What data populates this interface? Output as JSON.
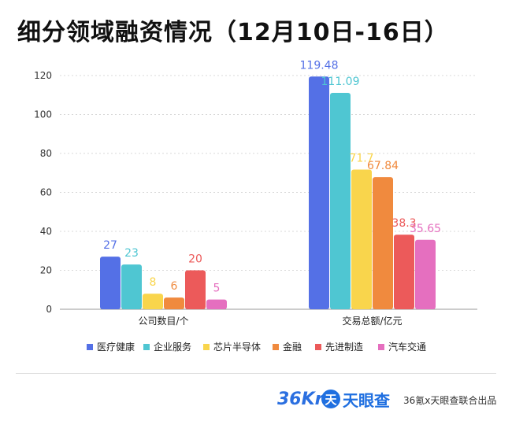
{
  "title": "细分领域融资情况（12月10日-16日）",
  "chart_data": {
    "type": "bar",
    "categories": [
      "公司数目/个",
      "交易总额/亿元"
    ],
    "series": [
      {
        "name": "医疗健康",
        "color": "#5470e6",
        "values": [
          27,
          119.48
        ],
        "labels": [
          "27",
          "119.48"
        ]
      },
      {
        "name": "企业服务",
        "color": "#4fc6d2",
        "values": [
          23,
          111.09
        ],
        "labels": [
          "23",
          "111.09"
        ]
      },
      {
        "name": "芯片半导体",
        "color": "#f9d54c",
        "values": [
          8,
          71.7
        ],
        "labels": [
          "8",
          "71.7"
        ]
      },
      {
        "name": "金融",
        "color": "#f08a3e",
        "values": [
          6,
          67.84
        ],
        "labels": [
          "6",
          "67.84"
        ]
      },
      {
        "name": "先进制造",
        "color": "#ec5a5a",
        "values": [
          20,
          38.3
        ],
        "labels": [
          "20",
          "38.3"
        ]
      },
      {
        "name": "汽车交通",
        "color": "#e56fbf",
        "values": [
          5,
          35.65
        ],
        "labels": [
          "5",
          "35.65"
        ]
      }
    ],
    "yticks": [
      "0",
      "20",
      "40",
      "60",
      "80",
      "100",
      "120"
    ],
    "ylim": [
      0,
      120
    ],
    "grid": "dashed-horizontal",
    "legend_position": "bottom"
  },
  "footer": {
    "logo_36kr": "36Kr",
    "logo_tianyancha": "天眼查",
    "logo_tianyancha_mark": "天",
    "credit": "36氪x天眼查联合出品"
  }
}
